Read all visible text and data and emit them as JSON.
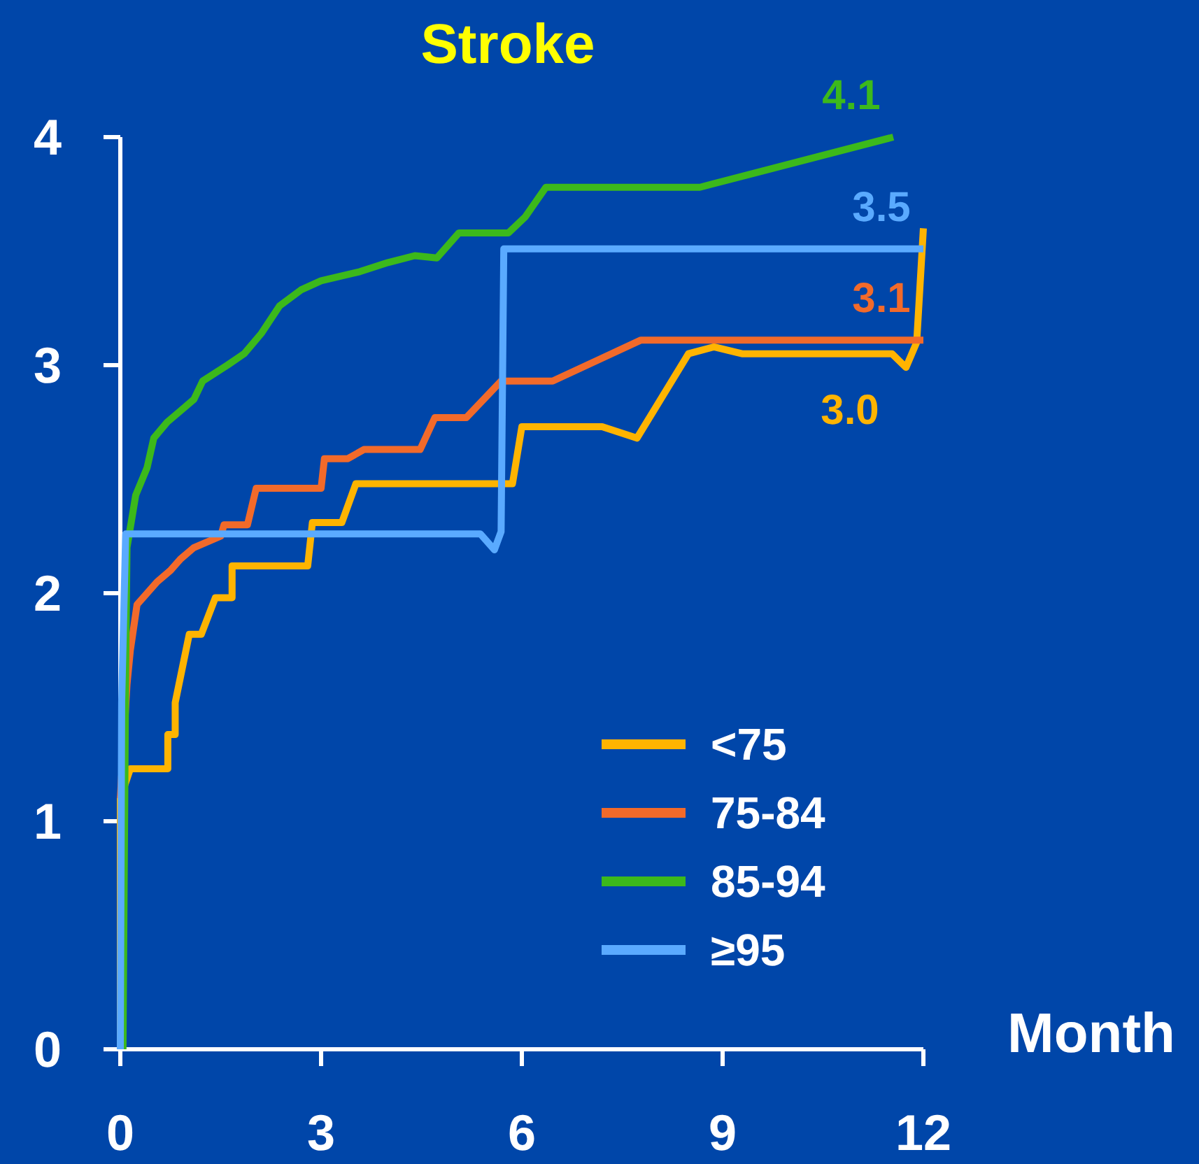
{
  "chart_data": {
    "type": "line",
    "title": "Stroke",
    "xlabel": "Month",
    "xlim": [
      0,
      12
    ],
    "xticks": [
      0,
      3,
      6,
      9,
      12
    ],
    "ylim": [
      0,
      4
    ],
    "yticks": [
      0,
      1,
      2,
      3,
      4
    ],
    "grid": false,
    "legend": "bottom right",
    "marker": "none",
    "line_style": "solid",
    "series": [
      {
        "name": "<75",
        "color": "#ffb400",
        "x": [
          0,
          0,
          0.15,
          0.71,
          0.71,
          0.82,
          0.82,
          1.03,
          1.21,
          1.42,
          1.67,
          1.67,
          2.8,
          2.87,
          3.31,
          3.52,
          5.86,
          6.0,
          7.2,
          7.72,
          8.49,
          8.87,
          9.29,
          11.53,
          11.74,
          11.9,
          12
        ],
        "values": [
          0,
          1.1,
          1.23,
          1.23,
          1.38,
          1.38,
          1.52,
          1.82,
          1.82,
          1.98,
          1.98,
          2.12,
          2.12,
          2.31,
          2.31,
          2.48,
          2.48,
          2.73,
          2.73,
          2.68,
          3.05,
          3.08,
          3.05,
          3.05,
          2.99,
          3.1,
          3.6
        ]
      },
      {
        "name": "75-84",
        "color": "#f26a2a",
        "x": [
          0,
          0.1,
          0.15,
          0.25,
          0.4,
          0.55,
          0.75,
          0.9,
          1.1,
          1.5,
          1.55,
          1.9,
          2.03,
          3.0,
          3.05,
          3.4,
          3.64,
          4.48,
          4.7,
          5.17,
          5.69,
          6.46,
          7.78,
          12
        ],
        "values": [
          1.1,
          1.6,
          1.75,
          1.95,
          2.0,
          2.05,
          2.1,
          2.15,
          2.2,
          2.25,
          2.3,
          2.3,
          2.46,
          2.46,
          2.59,
          2.59,
          2.63,
          2.63,
          2.77,
          2.77,
          2.93,
          2.93,
          3.11,
          3.11
        ]
      },
      {
        "name": "85-94",
        "color": "#3cb91b",
        "x": [
          0.04,
          0.08,
          0.1,
          0.23,
          0.4,
          0.5,
          0.7,
          0.9,
          1.1,
          1.23,
          1.6,
          1.85,
          2.11,
          2.38,
          2.7,
          3.0,
          3.58,
          4.0,
          4.4,
          4.73,
          5.06,
          5.8,
          6.05,
          6.36,
          8.66,
          11.55
        ],
        "values": [
          0,
          1.66,
          2.2,
          2.43,
          2.55,
          2.68,
          2.75,
          2.8,
          2.85,
          2.93,
          3.0,
          3.05,
          3.14,
          3.26,
          3.33,
          3.37,
          3.41,
          3.45,
          3.48,
          3.47,
          3.58,
          3.58,
          3.65,
          3.78,
          3.78,
          4.0
        ]
      },
      {
        "name": "≥95",
        "color": "#5aaaff",
        "x": [
          0,
          0.02,
          0.08,
          5.38,
          5.59,
          5.69,
          5.73,
          12
        ],
        "values": [
          0,
          1.52,
          2.26,
          2.26,
          2.19,
          2.27,
          3.51,
          3.51
        ]
      }
    ],
    "annotations": [
      {
        "text": "3.0",
        "x": 11.53,
        "y": 3.05
      },
      {
        "text": "3.1",
        "x": 12,
        "y": 3.11
      },
      {
        "text": "4.1",
        "x": 11.55,
        "y": 4.0
      },
      {
        "text": "3.5",
        "x": 12,
        "y": 3.51
      }
    ]
  }
}
